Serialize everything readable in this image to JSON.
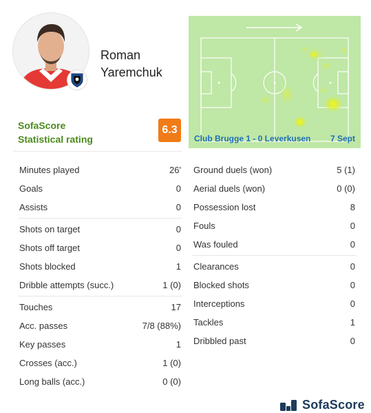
{
  "player": {
    "first_name": "Roman",
    "last_name": "Yaremchuk",
    "club_badge_icon": "club-brugge-crest-icon"
  },
  "rating": {
    "label_line1": "SofaScore",
    "label_line2": "Statistical rating",
    "value": "6.3",
    "color": "#f07b17"
  },
  "match": {
    "label": "Club Brugge 1 - 0 Leverkusen",
    "date": "7 Sept",
    "direction_icon": "attack-direction-arrow-icon"
  },
  "stats_left": [
    [
      {
        "label": "Minutes played",
        "value": "26'"
      },
      {
        "label": "Goals",
        "value": "0"
      },
      {
        "label": "Assists",
        "value": "0"
      }
    ],
    [
      {
        "label": "Shots on target",
        "value": "0"
      },
      {
        "label": "Shots off target",
        "value": "0"
      },
      {
        "label": "Shots blocked",
        "value": "1"
      },
      {
        "label": "Dribble attempts (succ.)",
        "value": "1 (0)"
      }
    ],
    [
      {
        "label": "Touches",
        "value": "17"
      },
      {
        "label": "Acc. passes",
        "value": "7/8 (88%)"
      },
      {
        "label": "Key passes",
        "value": "1"
      },
      {
        "label": "Crosses (acc.)",
        "value": "1 (0)"
      },
      {
        "label": "Long balls (acc.)",
        "value": "0 (0)"
      }
    ]
  ],
  "stats_right": [
    [
      {
        "label": "Ground duels (won)",
        "value": "5 (1)"
      },
      {
        "label": "Aerial duels (won)",
        "value": "0 (0)"
      },
      {
        "label": "Possession lost",
        "value": "8"
      },
      {
        "label": "Fouls",
        "value": "0"
      },
      {
        "label": "Was fouled",
        "value": "0"
      }
    ],
    [
      {
        "label": "Clearances",
        "value": "0"
      },
      {
        "label": "Blocked shots",
        "value": "0"
      },
      {
        "label": "Interceptions",
        "value": "0"
      },
      {
        "label": "Tackles",
        "value": "1"
      },
      {
        "label": "Dribbled past",
        "value": "0"
      }
    ]
  ],
  "footer": {
    "brand": "SofaScore",
    "logo_icon": "sofascore-logo-icon"
  }
}
